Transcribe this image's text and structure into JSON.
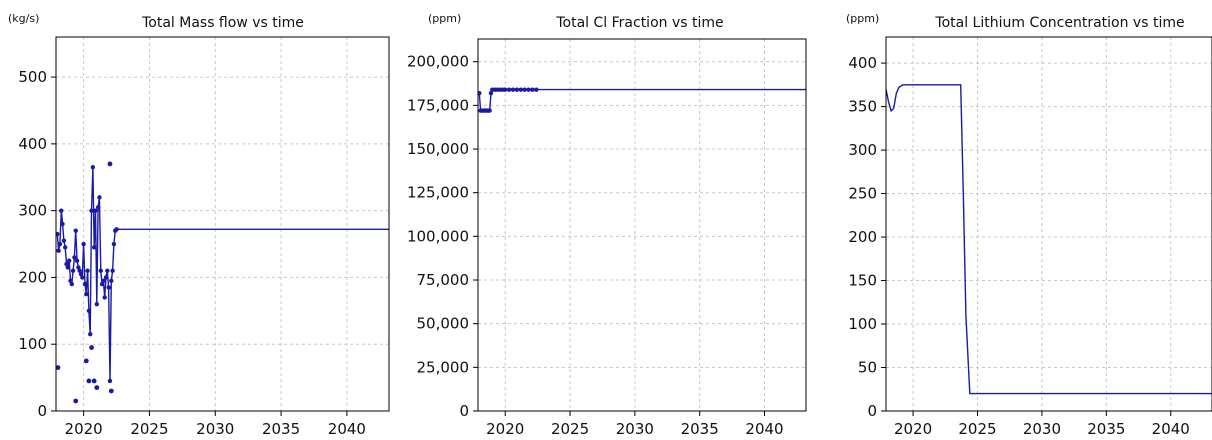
{
  "colors": {
    "series": "#1a1aa6",
    "grid": "#c8c8c8",
    "frame": "#000000"
  },
  "chart_data": [
    {
      "type": "line",
      "title": "Total Mass flow vs time",
      "unit": "(kg/s)",
      "xlabel": "",
      "ylabel": "",
      "xlim": [
        2017.9,
        2043.2
      ],
      "ylim": [
        0,
        560
      ],
      "xticks": [
        2020,
        2025,
        2030,
        2035,
        2040
      ],
      "yticks": [
        0,
        100,
        200,
        300,
        400,
        500
      ],
      "ytick_labels": [
        "0",
        "100",
        "200",
        "300",
        "400",
        "500"
      ],
      "grid": true,
      "markers": true,
      "marker_range": [
        2017.9,
        2022.6
      ],
      "series": [
        {
          "x": [
            2018.0,
            2018.1,
            2018.2,
            2018.3,
            2018.4,
            2018.5,
            2018.6,
            2018.7,
            2018.8,
            2018.9,
            2019.0,
            2019.1,
            2019.2,
            2019.3,
            2019.4,
            2019.5,
            2019.6,
            2019.7,
            2019.8,
            2019.9,
            2020.0,
            2020.1,
            2020.2,
            2020.3,
            2020.4,
            2020.5,
            2020.6,
            2020.7,
            2020.8,
            2020.9,
            2021.0,
            2021.1,
            2021.2,
            2021.3,
            2021.4,
            2021.5,
            2021.6,
            2021.7,
            2021.8,
            2021.9,
            2022.0,
            2022.1,
            2022.2,
            2022.3,
            2022.4,
            2022.5,
            2043.2
          ],
          "y": [
            265,
            240,
            250,
            300,
            280,
            255,
            245,
            220,
            215,
            225,
            195,
            190,
            210,
            230,
            270,
            225,
            215,
            210,
            205,
            200,
            250,
            190,
            175,
            210,
            150,
            115,
            300,
            365,
            245,
            300,
            160,
            305,
            320,
            210,
            190,
            195,
            170,
            200,
            210,
            185,
            45,
            195,
            210,
            250,
            270,
            272,
            272
          ]
        }
      ],
      "outlier_points": {
        "x": [
          2018.05,
          2019.4,
          2020.2,
          2020.4,
          2020.6,
          2020.8,
          2021.0,
          2022.0,
          2022.1
        ],
        "y": [
          65,
          15,
          75,
          45,
          95,
          45,
          35,
          370,
          30
        ]
      }
    },
    {
      "type": "line",
      "title": "Total Cl Fraction vs time",
      "unit": "(ppm)",
      "xlabel": "",
      "ylabel": "",
      "xlim": [
        2017.9,
        2043.2
      ],
      "ylim": [
        0,
        213000
      ],
      "xticks": [
        2020,
        2025,
        2030,
        2035,
        2040
      ],
      "yticks": [
        0,
        25000,
        50000,
        75000,
        100000,
        125000,
        150000,
        175000,
        200000
      ],
      "ytick_labels": [
        "0",
        "25,000",
        "50,000",
        "75,000",
        "100,000",
        "125,000",
        "150,000",
        "175,000",
        "200,000"
      ],
      "grid": true,
      "markers": true,
      "marker_range": [
        2017.9,
        2022.6
      ],
      "series": [
        {
          "x": [
            2018.0,
            2018.1,
            2018.2,
            2018.3,
            2018.4,
            2018.5,
            2018.6,
            2018.7,
            2018.8,
            2018.9,
            2019.0,
            2019.2,
            2019.4,
            2019.6,
            2019.8,
            2020.0,
            2020.3,
            2020.6,
            2020.9,
            2021.2,
            2021.5,
            2021.8,
            2022.1,
            2022.4,
            2043.2
          ],
          "y": [
            182000,
            172000,
            172000,
            172000,
            172000,
            172000,
            172000,
            172000,
            172000,
            182000,
            184000,
            184000,
            184000,
            184000,
            184000,
            184000,
            184000,
            184000,
            184000,
            184000,
            184000,
            184000,
            184000,
            184000,
            184000
          ]
        }
      ]
    },
    {
      "type": "line",
      "title": "Total Lithium Concentration vs time",
      "unit": "(ppm)",
      "xlabel": "",
      "ylabel": "",
      "xlim": [
        2017.9,
        2043.2
      ],
      "ylim": [
        0,
        430
      ],
      "xticks": [
        2020,
        2025,
        2030,
        2035,
        2040
      ],
      "yticks": [
        0,
        50,
        100,
        150,
        200,
        250,
        300,
        350,
        400
      ],
      "ytick_labels": [
        "0",
        "50",
        "100",
        "150",
        "200",
        "250",
        "300",
        "350",
        "400"
      ],
      "grid": true,
      "markers": false,
      "series": [
        {
          "x": [
            2017.9,
            2018.1,
            2018.3,
            2018.5,
            2018.7,
            2018.9,
            2019.2,
            2020.0,
            2021.0,
            2022.0,
            2023.0,
            2023.7,
            2023.9,
            2024.1,
            2024.4,
            2025.0,
            2030.0,
            2035.0,
            2040.0,
            2043.2
          ],
          "y": [
            370,
            355,
            345,
            348,
            365,
            372,
            375,
            375,
            375,
            375,
            375,
            375,
            250,
            110,
            20,
            20,
            20,
            20,
            20,
            20
          ]
        }
      ]
    }
  ]
}
